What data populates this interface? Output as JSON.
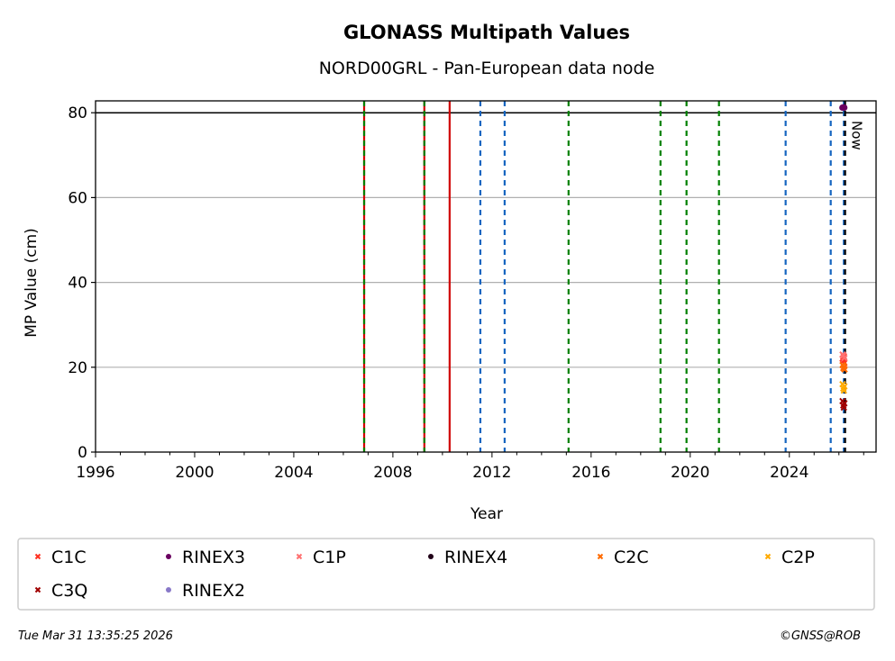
{
  "chart_data": {
    "type": "scatter",
    "title": "GLONASS Multipath Values",
    "subtitle": "NORD00GRL - Pan-European data node",
    "xlabel": "Year",
    "ylabel": "MP Value (cm)",
    "xlim": [
      1996,
      2027.5
    ],
    "ylim": [
      0,
      82.8
    ],
    "xticks": [
      1996,
      2000,
      2004,
      2008,
      2012,
      2016,
      2020,
      2024
    ],
    "yticks": [
      0,
      20,
      40,
      60,
      80
    ],
    "grid": "y",
    "threshold_line": 80,
    "now_label": "Now",
    "now_x": 2026.25,
    "event_lines": [
      {
        "x": 2006.84,
        "color": "#d00000",
        "style": "solid"
      },
      {
        "x": 2006.84,
        "color": "#008000",
        "style": "dashed"
      },
      {
        "x": 2009.27,
        "color": "#d00000",
        "style": "solid"
      },
      {
        "x": 2009.27,
        "color": "#008000",
        "style": "dashed"
      },
      {
        "x": 2010.29,
        "color": "#d00000",
        "style": "solid"
      },
      {
        "x": 2011.53,
        "color": "#1565c0",
        "style": "dashed"
      },
      {
        "x": 2012.51,
        "color": "#1565c0",
        "style": "dashed"
      },
      {
        "x": 2015.09,
        "color": "#008000",
        "style": "dashed"
      },
      {
        "x": 2018.8,
        "color": "#008000",
        "style": "dashed"
      },
      {
        "x": 2019.85,
        "color": "#008000",
        "style": "dashed"
      },
      {
        "x": 2021.16,
        "color": "#008000",
        "style": "dashed"
      },
      {
        "x": 2023.85,
        "color": "#1565c0",
        "style": "dashed"
      },
      {
        "x": 2025.67,
        "color": "#1565c0",
        "style": "dashed"
      },
      {
        "x": 2026.2,
        "color": "#1565c0",
        "style": "dashed"
      }
    ],
    "series": [
      {
        "name": "C1C",
        "marker": "x",
        "color": "#ff3020",
        "points": [
          [
            2026.15,
            22
          ],
          [
            2026.18,
            21.5
          ],
          [
            2026.2,
            22.5
          ],
          [
            2026.22,
            21
          ]
        ]
      },
      {
        "name": "C1P",
        "marker": "x",
        "color": "#ff7070",
        "points": [
          [
            2026.15,
            23
          ],
          [
            2026.19,
            22.8
          ],
          [
            2026.22,
            22.2
          ]
        ]
      },
      {
        "name": "C2C",
        "marker": "x",
        "color": "#ff6a00",
        "points": [
          [
            2026.15,
            20.5
          ],
          [
            2026.18,
            19.8
          ],
          [
            2026.21,
            20.2
          ],
          [
            2026.23,
            19.5
          ]
        ]
      },
      {
        "name": "C2P",
        "marker": "x",
        "color": "#ffaa00",
        "points": [
          [
            2026.15,
            16
          ],
          [
            2026.18,
            15
          ],
          [
            2026.2,
            14.5
          ],
          [
            2026.22,
            15.5
          ]
        ]
      },
      {
        "name": "C3Q",
        "marker": "x",
        "color": "#a00000",
        "points": [
          [
            2026.15,
            12
          ],
          [
            2026.18,
            11
          ],
          [
            2026.2,
            10.5
          ],
          [
            2026.22,
            11.5
          ]
        ]
      },
      {
        "name": "RINEX2",
        "marker": "o",
        "color": "#8878c8",
        "points": []
      },
      {
        "name": "RINEX3",
        "marker": "o",
        "color": "#6a0060",
        "points": [
          [
            2026.14,
            81.2
          ],
          [
            2026.18,
            81.3
          ],
          [
            2026.22,
            81.2
          ]
        ]
      },
      {
        "name": "RINEX4",
        "marker": "o",
        "color": "#200018",
        "points": []
      }
    ]
  },
  "footer": {
    "timestamp": "Tue Mar 31 13:35:25 2026",
    "copyright": "©GNSS@ROB"
  }
}
